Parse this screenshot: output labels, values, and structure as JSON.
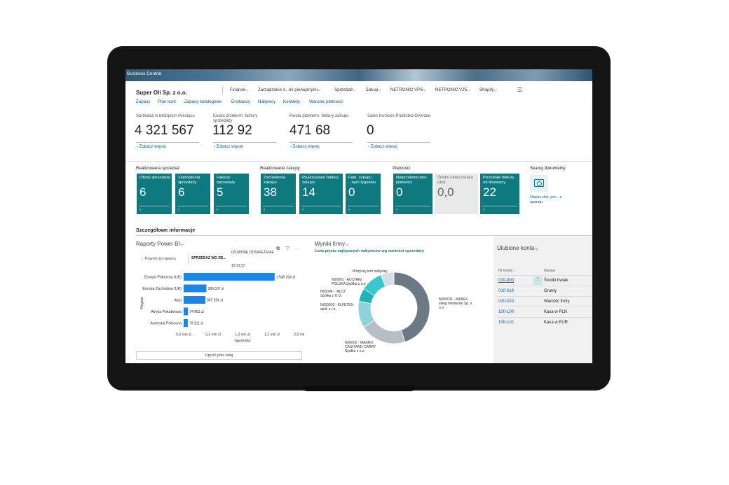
{
  "app": {
    "banner_title": "Business Central",
    "company": "Super Oli Sp. z o.o."
  },
  "nav": {
    "menus": [
      "Finanse",
      "Zarządzanie ś...mi pieniężnymi",
      "Sprzedaż",
      "Zakup",
      "NETRONIC VPS",
      "NETRONIC VJS",
      "Shopify"
    ],
    "chevron": "⌵",
    "hamburger": "☰",
    "links": [
      "Zapasy",
      "Plan kont",
      "Zapasy katalogowe",
      "Dostawcy",
      "Nabywcy",
      "Kontakty",
      "Warunki płatności"
    ]
  },
  "kpis": [
    {
      "label": "Sprzedaż w bieżącym miesiącu",
      "value": "4 321 567",
      "more": "Zobacz więcej"
    },
    {
      "label": "Kwota przeterm. faktury sprzedaży",
      "value": "112 92",
      "more": "Zobacz więcej"
    },
    {
      "label": "Kwota przeterm. faktury zakupu",
      "value": "471 68",
      "more": "Zobacz więcej"
    },
    {
      "label": "Sales Invoices Predicted Overdue",
      "value": "0",
      "more": "Zobacz więcej"
    }
  ],
  "groups": {
    "sales": {
      "title": "Realizowana sprzedaż",
      "tiles": [
        {
          "label": "Oferty sprzedaży",
          "value": "6"
        },
        {
          "label": "Zamówienia sprzedaży",
          "value": "6"
        },
        {
          "label": "Faktury sprzedaży",
          "value": "5"
        }
      ]
    },
    "purchase": {
      "title": "Realizowane zakupy",
      "tiles": [
        {
          "label": "Zamówienia zakupu",
          "value": "38"
        },
        {
          "label": "Realizowane faktury zakupu",
          "value": "14"
        },
        {
          "label": "Fakt. zakupu ...nym tygodniu",
          "value": "0"
        }
      ]
    },
    "payments": {
      "title": "Płatności",
      "tiles": [
        {
          "label": "Nieprzetworzone płatności",
          "value": "0"
        },
        {
          "label": "Średni okres inkasa (dni)",
          "value": "0,0"
        },
        {
          "label": "Pozostałe faktury od dostawcy",
          "value": "22"
        }
      ]
    },
    "scan": {
      "title": "Skanuj dokumenty",
      "caption": "Utwórz dok. prz... z aparatu"
    }
  },
  "detail_title": "Szczegółowe informacje",
  "powerbi": {
    "title": "Raporty Power BI",
    "back": "Powrót do raportu",
    "tab": "SPRZEDAŻ WG RE...",
    "cut_top": "OSTATNIE ODŚWIEŻENIE",
    "cut_bottom": "15:31:57",
    "icons": "⧉ ▽ ⋯",
    "drop": "Upuść pole tutaj"
  },
  "chart_data": [
    {
      "type": "bar",
      "orientation": "horizontal",
      "categories": [
        "Europa Północna (UE)",
        "Europa Zachodnia (UE)",
        "Azja",
        "Afryka Południowa",
        "Ameryka Północna"
      ],
      "values": [
        1545204,
        386507,
        367524,
        74803,
        70211
      ],
      "value_labels": [
        "1 545 204 zł",
        "386 507 zł",
        "367 524 zł",
        "74 803 zł",
        "70 211 zł"
      ],
      "xlabel": "Sprzedaż",
      "ylabel": "Region",
      "xlim": [
        0,
        2000000
      ],
      "xticks": [
        "0,0 mln zł",
        "0,5 mln zł",
        "1,0 mln zł",
        "1,5 mln zł",
        "2,0 mln zł"
      ],
      "color": "#1a87e6"
    },
    {
      "type": "pie",
      "donut": true,
      "title": "Lista pięciu najlepszych nabywców wg wartości sprzedaży",
      "labels": [
        "N000011 - MEBEL sklep meblarski Sp. z o.o.",
        "N00002 - MAKRO CASH AND CARRY Spółka z o.o.",
        "N000010 - ELFETEX, spół. z r.o.",
        "N00004 - \"ALDI\" Spółka z o.o.",
        "N00001 - AUCHAN POLSKA Spółka z o.o",
        "Wszyscy inni nabywcy"
      ],
      "values": [
        45,
        21,
        12,
        6,
        10,
        6
      ],
      "colors": [
        "#6c7a85",
        "#b6bfc7",
        "#8fd3da",
        "#1fb5b5",
        "#36c8ce",
        "#d5dee4"
      ]
    }
  ],
  "wyniki": {
    "title": "Wyniki firmy",
    "subtitle": "Lista pięciu najlepszych nabywców wg wartości sprzedaży"
  },
  "favorites": {
    "title": "Ulubione konta",
    "col_no": "Nr konta ↑",
    "col_name": "Nazwa",
    "dots": "⋮",
    "rows": [
      {
        "code": "010-000",
        "name": "Środki trwałe"
      },
      {
        "code": "010-010",
        "name": "Grunty"
      },
      {
        "code": "020-020",
        "name": "Wartość firmy"
      },
      {
        "code": "100-100",
        "name": "Kasa w PLN"
      },
      {
        "code": "100-110",
        "name": "Kasa w EUR"
      }
    ]
  },
  "colors": {
    "tile": "#0e7a7f",
    "link": "#005a9e",
    "accent_bar": "#12a59b"
  }
}
